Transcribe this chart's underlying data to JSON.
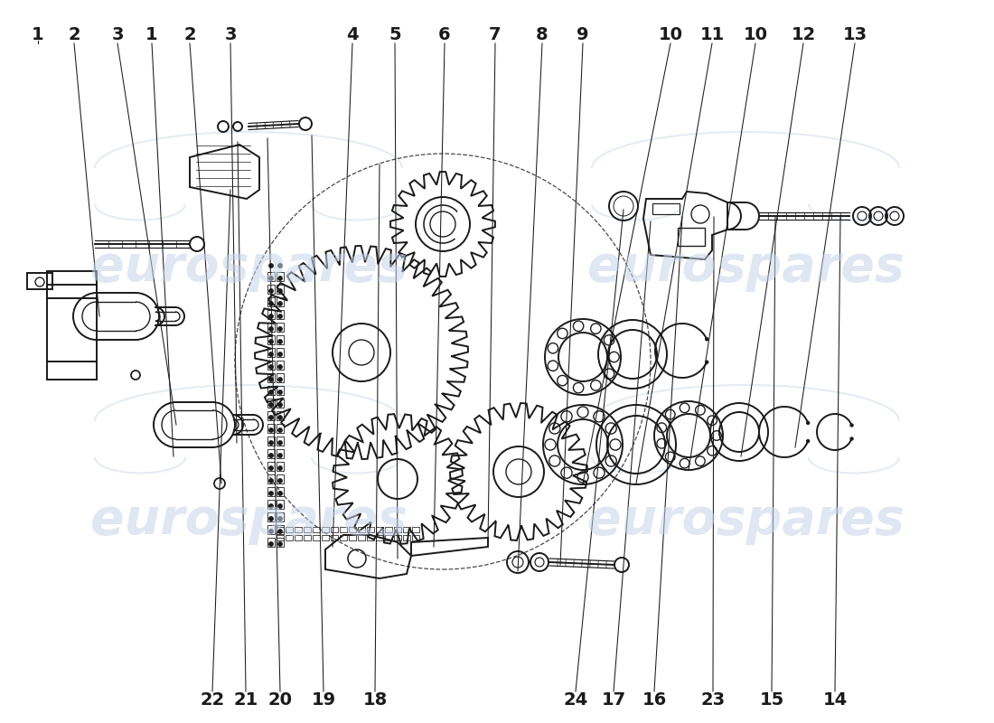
{
  "background_color": "#ffffff",
  "line_color": "#1a1a1a",
  "watermark_color": "#c8d4e8",
  "watermark_text": "eurospares",
  "font_size_labels": 14,
  "font_weight": "bold",
  "top_labels_left": [
    [
      "1",
      42
    ],
    [
      "2",
      82
    ],
    [
      "3",
      130
    ],
    [
      "1",
      168
    ],
    [
      "2",
      210
    ],
    [
      "3",
      255
    ]
  ],
  "top_labels_center": [
    [
      "4",
      390
    ],
    [
      "5",
      437
    ],
    [
      "6",
      492
    ],
    [
      "7",
      548
    ],
    [
      "8",
      600
    ],
    [
      "9",
      645
    ]
  ],
  "top_labels_right": [
    [
      "10",
      742
    ],
    [
      "11",
      788
    ],
    [
      "10",
      836
    ],
    [
      "12",
      889
    ],
    [
      "13",
      946
    ]
  ],
  "bottom_labels": [
    [
      "22",
      235
    ],
    [
      "21",
      272
    ],
    [
      "20",
      310
    ],
    [
      "19",
      358
    ],
    [
      "18",
      415
    ],
    [
      "24",
      637
    ],
    [
      "17",
      679
    ],
    [
      "16",
      724
    ],
    [
      "23",
      789
    ],
    [
      "15",
      854
    ],
    [
      "14",
      924
    ]
  ]
}
